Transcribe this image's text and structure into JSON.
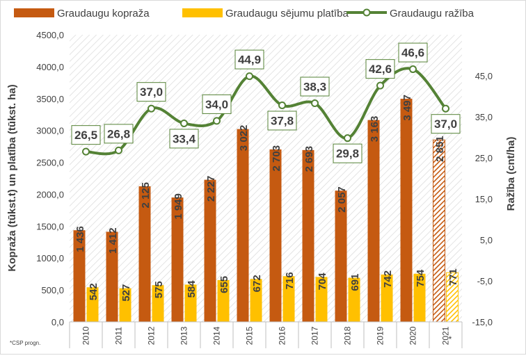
{
  "chart_data": {
    "type": "bar",
    "categories": [
      "2010",
      "2011",
      "2012",
      "2013",
      "2014",
      "2015",
      "2016",
      "2017",
      "2018",
      "2019",
      "2020",
      "2021"
    ],
    "series": [
      {
        "name": "Graudaugu kopraža",
        "kind": "bar",
        "axis": "left",
        "color": "#C55A11",
        "values": [
          1436,
          1412,
          2125,
          1949,
          2227,
          3022,
          2703,
          2693,
          2057,
          3163,
          3497,
          2851
        ],
        "labels": [
          "1 436",
          "1 412",
          "2 125",
          "1 949",
          "2 227",
          "3 022",
          "2 703",
          "2 693",
          "2 057",
          "3 163",
          "3 497",
          "2 851"
        ]
      },
      {
        "name": "Graudaugu sējumu platība",
        "kind": "bar",
        "axis": "left",
        "color": "#FFC000",
        "values": [
          542,
          527,
          575,
          584,
          655,
          672,
          716,
          704,
          691,
          742,
          754,
          771
        ],
        "labels": [
          "542",
          "527",
          "575",
          "584",
          "655",
          "672",
          "716",
          "704",
          "691",
          "742",
          "754",
          "771"
        ]
      },
      {
        "name": "Graudaugu ražība",
        "kind": "line",
        "axis": "right",
        "color": "#548235",
        "values": [
          26.5,
          26.8,
          37.0,
          33.4,
          34.0,
          44.9,
          37.8,
          38.3,
          29.8,
          42.6,
          46.6,
          37.0
        ],
        "labels": [
          "26,5",
          "26,8",
          "37,0",
          "33,4",
          "34,0",
          "44,9",
          "37,8",
          "38,3",
          "29,8",
          "42,6",
          "46,6",
          "37,0"
        ]
      }
    ],
    "forecast_category": "2021",
    "forecast_mark": "*",
    "y_left": {
      "label": "Kopraža (tūkst.t) un platība (tūkst. ha)",
      "min": 0,
      "max": 4500,
      "step": 500,
      "ticks": [
        "0,0",
        "500,0",
        "1000,0",
        "1500,0",
        "2000,0",
        "2500,0",
        "3000,0",
        "3500,0",
        "4000,0",
        "4500,0"
      ]
    },
    "y_right": {
      "label": "Ražība (cnt/ha)",
      "min": -15,
      "max": 55,
      "step": 10,
      "ticks": [
        "-15,0",
        "-5,0",
        "5,0",
        "15,0",
        "25,0",
        "35,0",
        "45,0"
      ]
    },
    "legend_position": "top",
    "footnote": "*CSP progn.",
    "grid": false,
    "plot_background": "diagonal hatch"
  }
}
